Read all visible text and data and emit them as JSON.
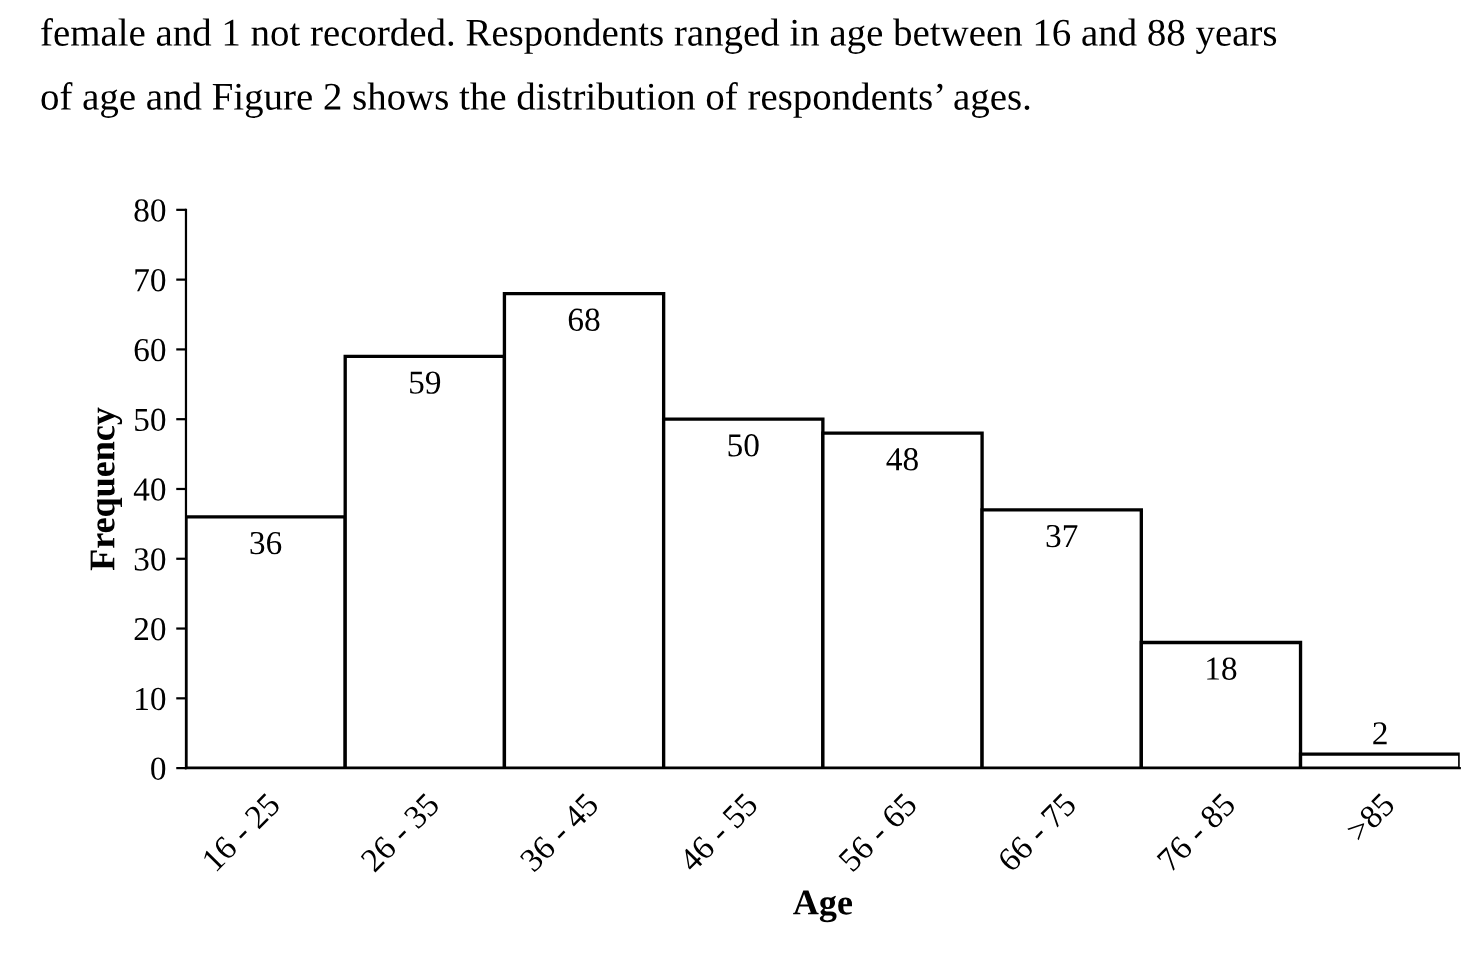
{
  "chart_data": {
    "type": "bar",
    "annotations": [
      "female and 1 not recorded. Respondents ranged in age between 16 and 88 years",
      "of age and Figure 2 shows the distribution of respondents’ ages."
    ],
    "xlabel": "Age",
    "ylabel": "Frequency",
    "categories": [
      "16 - 25",
      "26 - 35",
      "36 - 45",
      "46 - 55",
      "56 - 65",
      "66 - 75",
      "76 - 85",
      ">85"
    ],
    "values": [
      36,
      59,
      68,
      50,
      48,
      37,
      18,
      2
    ],
    "color": "#ffffff",
    "ylim": [
      0,
      80
    ],
    "yticks": [
      0,
      10,
      20,
      30,
      40,
      50,
      60,
      70,
      80
    ],
    "data_labels": true,
    "grid": false
  }
}
